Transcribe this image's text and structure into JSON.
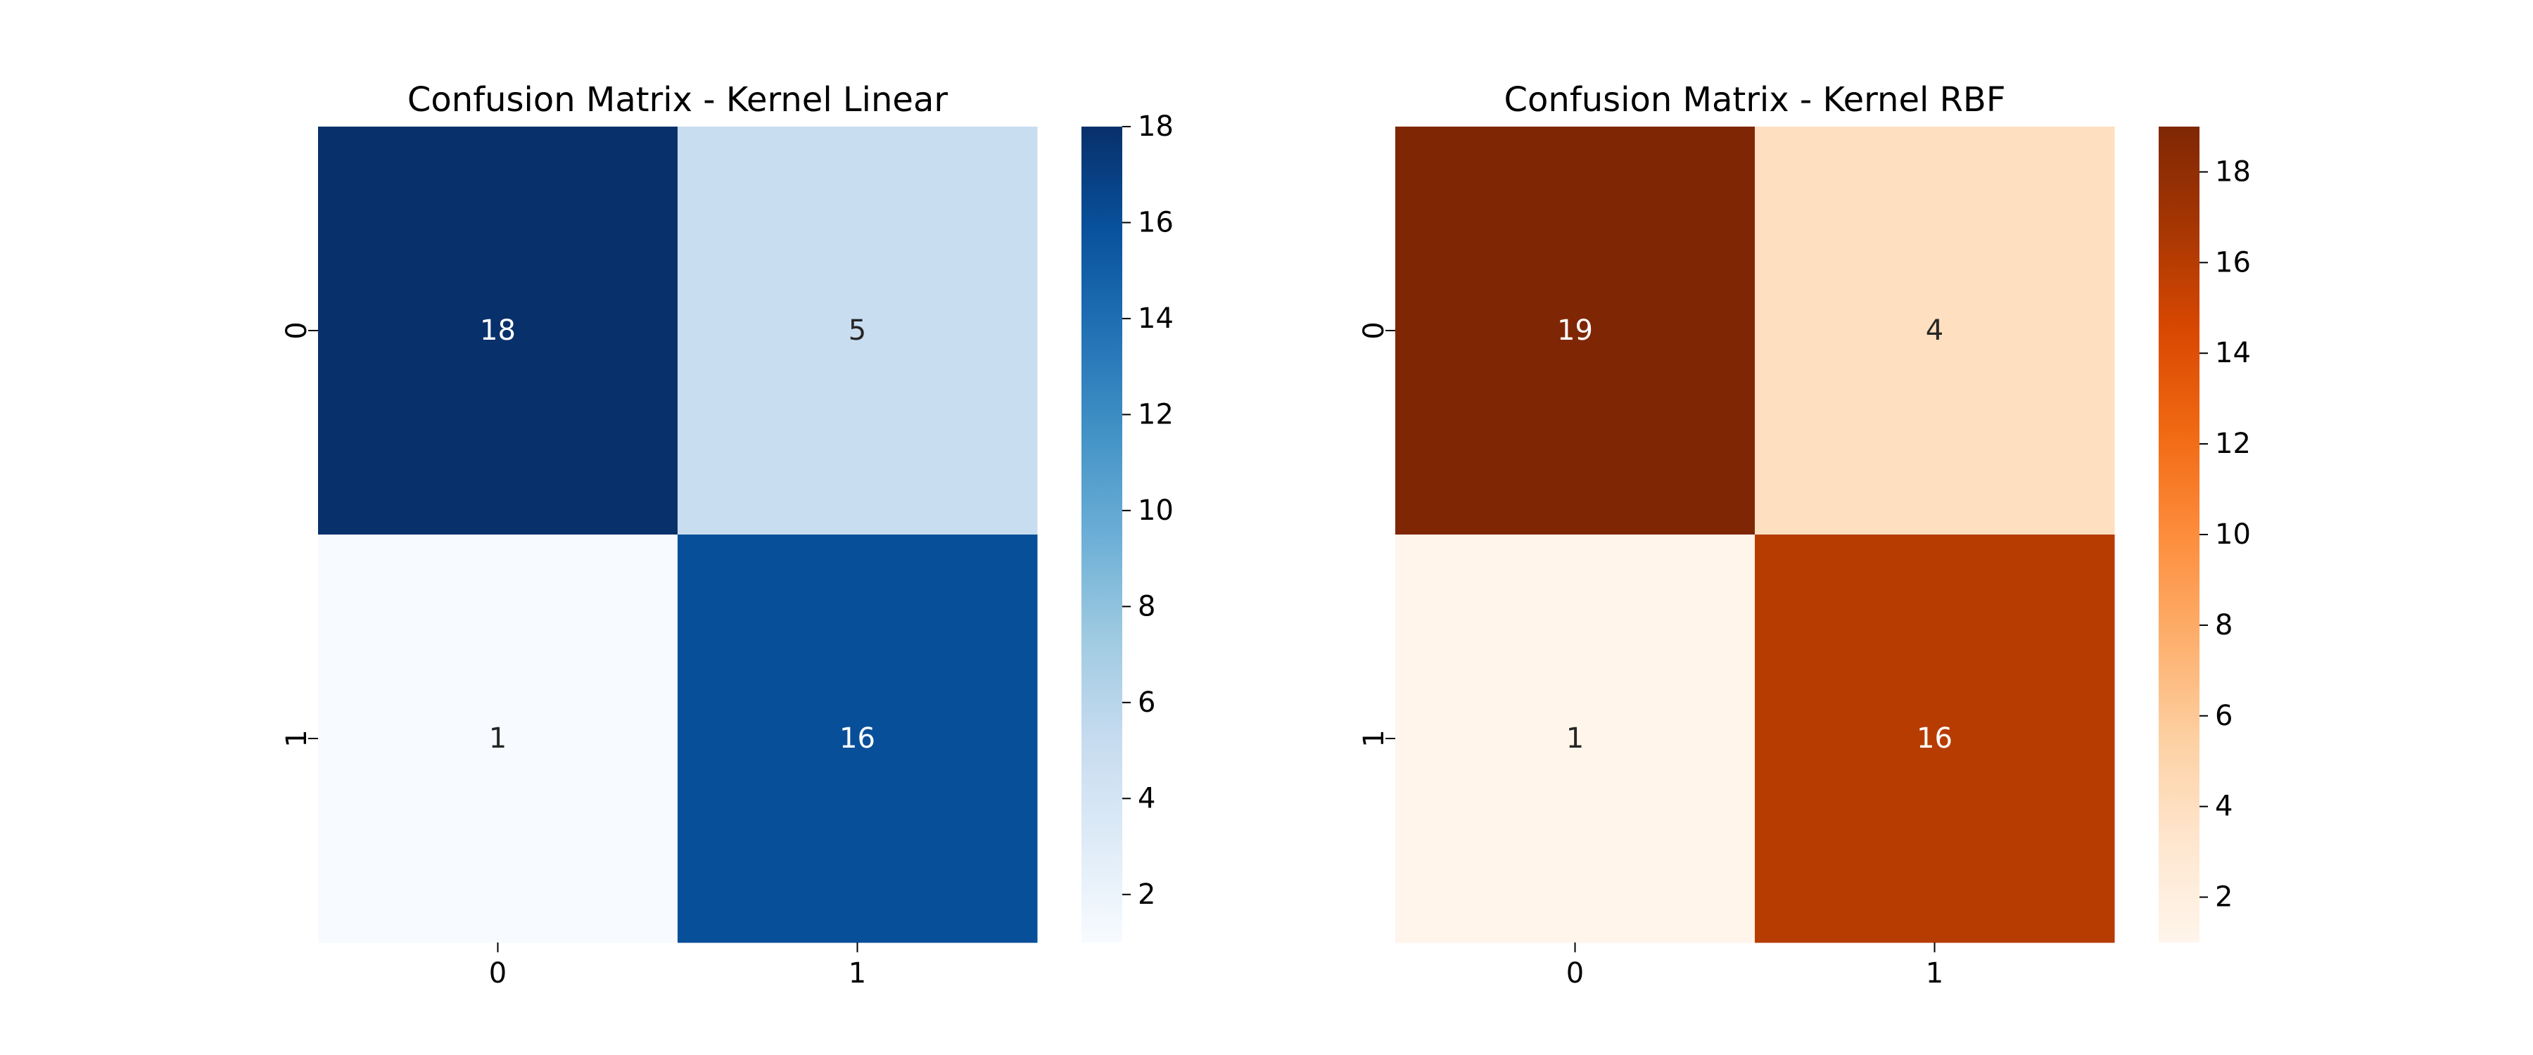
{
  "chart_data": [
    {
      "type": "heatmap",
      "title": "Confusion Matrix - Kernel Linear",
      "xlabel": "",
      "ylabel": "",
      "x_tick_labels": [
        "0",
        "1"
      ],
      "y_tick_labels": [
        "0",
        "1"
      ],
      "values": [
        [
          18,
          5
        ],
        [
          1,
          16
        ]
      ],
      "colormap": "Blues",
      "colormap_stops": [
        "#f7fbff",
        "#deebf7",
        "#c6dbef",
        "#9ecae1",
        "#6baed6",
        "#4292c6",
        "#2171b5",
        "#08519c",
        "#08306b"
      ],
      "colorbar_range": [
        1,
        18
      ],
      "colorbar_ticks": [
        "2",
        "4",
        "6",
        "8",
        "10",
        "12",
        "14",
        "16",
        "18"
      ],
      "annotation_text_dark": "#262626",
      "annotation_text_light": "#ffffff"
    },
    {
      "type": "heatmap",
      "title": "Confusion Matrix - Kernel RBF",
      "xlabel": "",
      "ylabel": "",
      "x_tick_labels": [
        "0",
        "1"
      ],
      "y_tick_labels": [
        "0",
        "1"
      ],
      "values": [
        [
          19,
          4
        ],
        [
          1,
          16
        ]
      ],
      "colormap": "Oranges",
      "colormap_stops": [
        "#fff5eb",
        "#fee6ce",
        "#fdd0a2",
        "#fdae6b",
        "#fd8d3c",
        "#f16913",
        "#d94801",
        "#a63603",
        "#7f2704"
      ],
      "colorbar_range": [
        1,
        19
      ],
      "colorbar_ticks": [
        "2",
        "4",
        "6",
        "8",
        "10",
        "12",
        "14",
        "16",
        "18"
      ],
      "annotation_text_dark": "#262626",
      "annotation_text_light": "#ffffff"
    }
  ]
}
